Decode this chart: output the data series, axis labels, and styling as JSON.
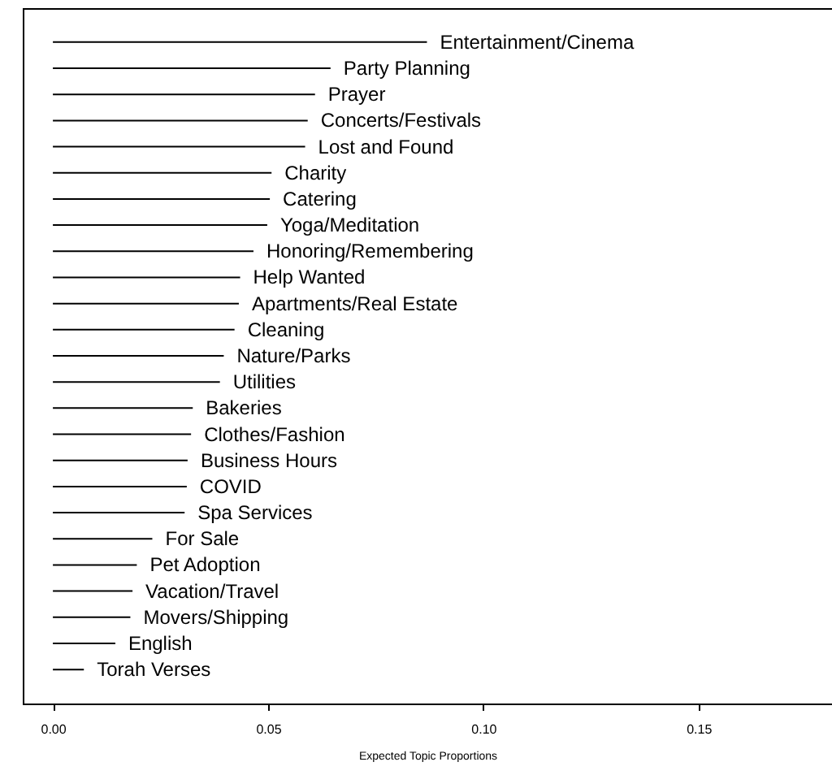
{
  "chart_data": {
    "type": "bar",
    "orientation": "horizontal",
    "xlabel": "Expected Topic Proportions",
    "categories": [
      "Entertainment/Cinema",
      "Party Planning",
      "Prayer",
      "Concerts/Festivals",
      "Lost and Found",
      "Charity",
      "Catering",
      "Yoga/Meditation",
      "Honoring/Remembering",
      "Help Wanted",
      "Apartments/Real Estate",
      "Cleaning",
      "Nature/Parks",
      "Utilities",
      "Bakeries",
      "Clothes/Fashion",
      "Business Hours",
      "COVID",
      "Spa Services",
      "For Sale",
      "Pet Adoption",
      "Vacation/Travel",
      "Movers/Shipping",
      "English",
      "Torah Verses"
    ],
    "values": [
      0.0869,
      0.0645,
      0.0609,
      0.0592,
      0.0586,
      0.0508,
      0.0504,
      0.0498,
      0.0466,
      0.0435,
      0.0432,
      0.0422,
      0.0397,
      0.0388,
      0.0325,
      0.0321,
      0.0313,
      0.0311,
      0.0306,
      0.0231,
      0.0195,
      0.0185,
      0.018,
      0.0145,
      0.0072
    ],
    "color": "#000000",
    "xlim": [
      -0.007,
      0.181
    ],
    "xticks": [
      {
        "value": 0,
        "label": "0.00"
      },
      0.05,
      {
        "value": 0.1,
        "label": "0.10"
      },
      0.15
    ],
    "tick_labels": "x",
    "grid": false
  }
}
